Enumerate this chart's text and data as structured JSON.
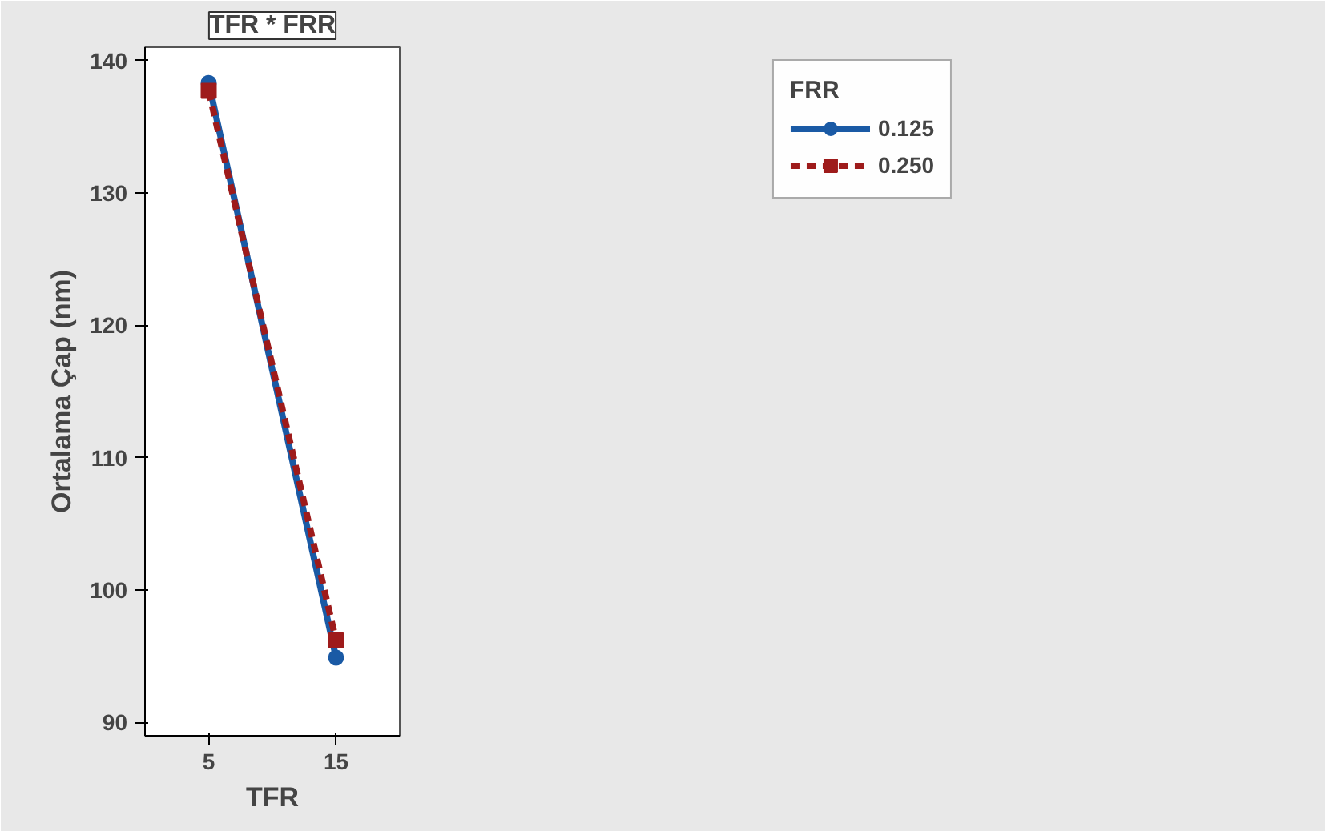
{
  "chart_data": {
    "type": "line",
    "title": "TFR * FRR",
    "xlabel": "TFR",
    "ylabel": "Ortalama Çap (nm)",
    "legend_title": "FRR",
    "categories": [
      "5",
      "15"
    ],
    "series": [
      {
        "name": "0.125",
        "color": "#1a5aa5",
        "values": [
          138.3,
          94.9
        ],
        "marker": "circle",
        "line_style": "solid"
      },
      {
        "name": "0.250",
        "color": "#9e1b1b",
        "values": [
          137.7,
          96.2
        ],
        "marker": "square",
        "line_style": "dashed"
      }
    ],
    "ylim": [
      89,
      141
    ],
    "yticks": [
      90,
      100,
      110,
      120,
      130,
      140
    ],
    "grid": false,
    "legend": "top right"
  }
}
